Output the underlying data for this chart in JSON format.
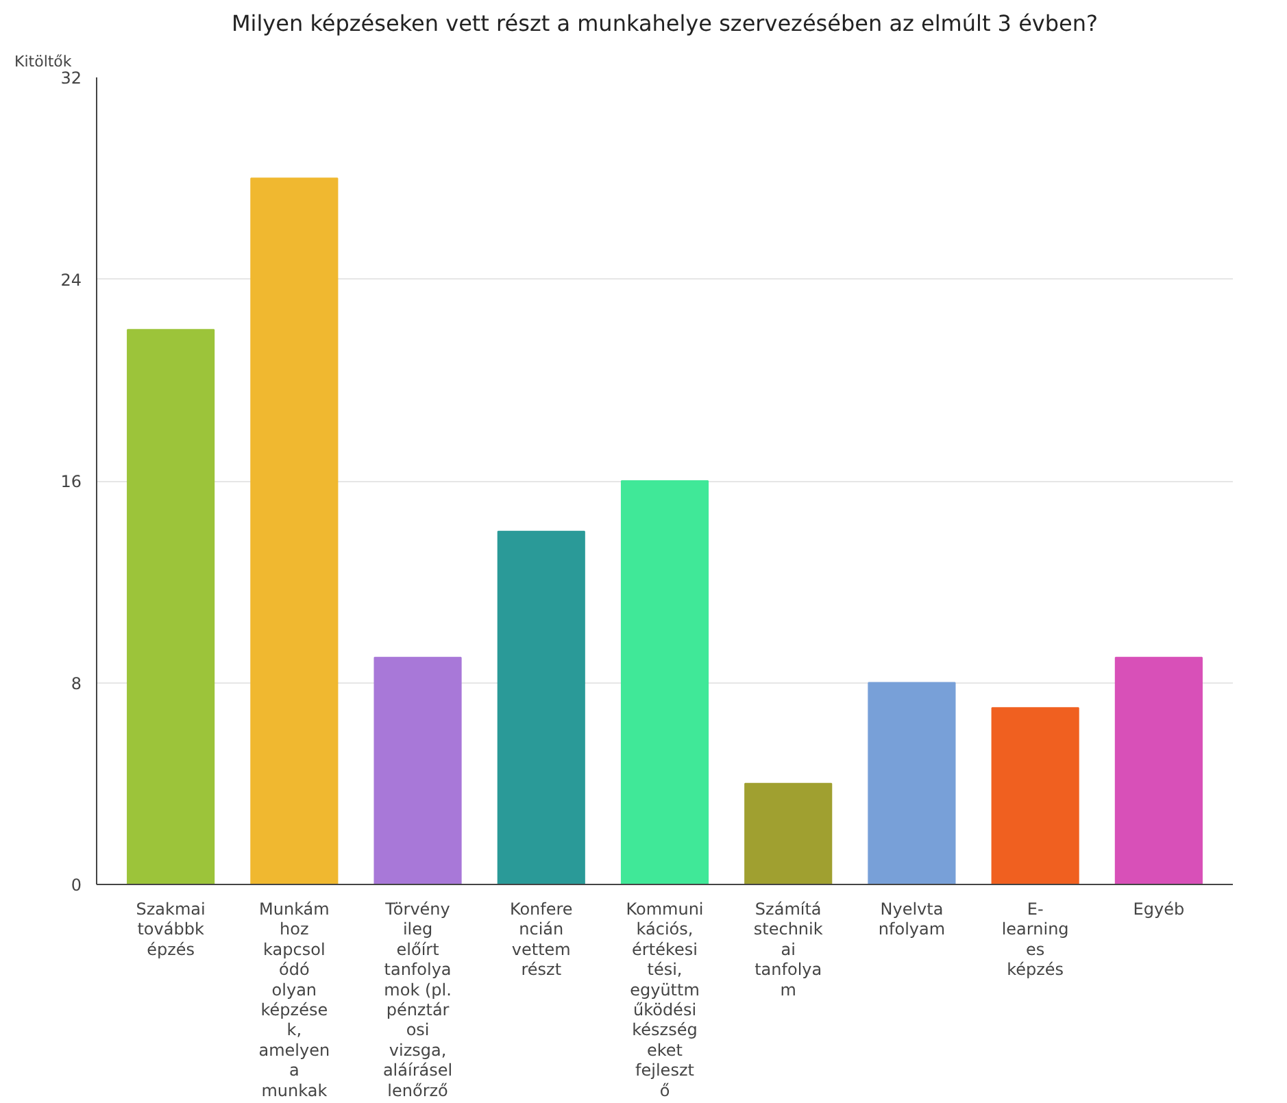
{
  "chart_data": {
    "type": "bar",
    "title": "Milyen képzéseken vett részt a munkahelye szervezésében az elmúlt 3 évben?",
    "ylabel": "Kitöltők",
    "categories": [
      "Szakmai\ntovábbk\népzés",
      "Munkám\nhoz\nkapcsol\nódó\nolyan\nképzése\nk,\namelyen\na\nmunkak",
      "Törvény\nileg\nelőírt\ntanfolya\nmok (pl.\npénztár\nosi\nvizsga,\naláírásel\nlenőrző",
      "Konfere\nncián\nvettem\nrészt",
      "Kommuni\nkációs,\nértékesi\ntési,\negyüttm\nűködési\nkészség\neket\nfejleszt\nő",
      "Számítá\nstechnik\nai\ntanfolya\nm",
      "Nyelvta\nnfolyam",
      "E-\nlearning\nes\nképzés",
      "Egyéb"
    ],
    "values": [
      22,
      28,
      9,
      14,
      16,
      4,
      8,
      7,
      9
    ],
    "colors": [
      "#9cc43a",
      "#f0b830",
      "#a878d8",
      "#2a9a98",
      "#40e898",
      "#a0a030",
      "#78a0d8",
      "#f06020",
      "#d850b8"
    ],
    "ylim": [
      0,
      32
    ],
    "yticks": [
      0,
      8,
      16,
      24,
      32
    ],
    "grid": "y"
  }
}
